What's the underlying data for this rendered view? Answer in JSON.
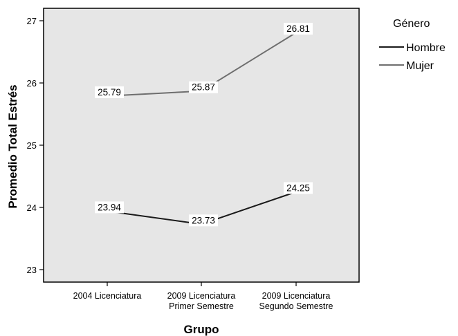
{
  "chart_data": {
    "type": "line",
    "categories": [
      [
        "2004 Licenciatura"
      ],
      [
        "2009 Licenciatura",
        "Primer Semestre"
      ],
      [
        "2009 Licenciatura",
        "Segundo Semestre"
      ]
    ],
    "series": [
      {
        "name": "Hombre",
        "values": [
          23.94,
          23.73,
          24.25
        ],
        "color": "#1a1a1a"
      },
      {
        "name": "Mujer",
        "values": [
          25.79,
          25.87,
          26.81
        ],
        "color": "#6e6e6e"
      }
    ],
    "xlabel": "Grupo",
    "ylabel": "Promedio Total Estrés",
    "ylim": [
      22.8,
      27.2
    ],
    "yticks": [
      23,
      24,
      25,
      26,
      27
    ],
    "legend_title": "Género",
    "legend_position": "right",
    "plot_background": "#e6e6e6"
  }
}
